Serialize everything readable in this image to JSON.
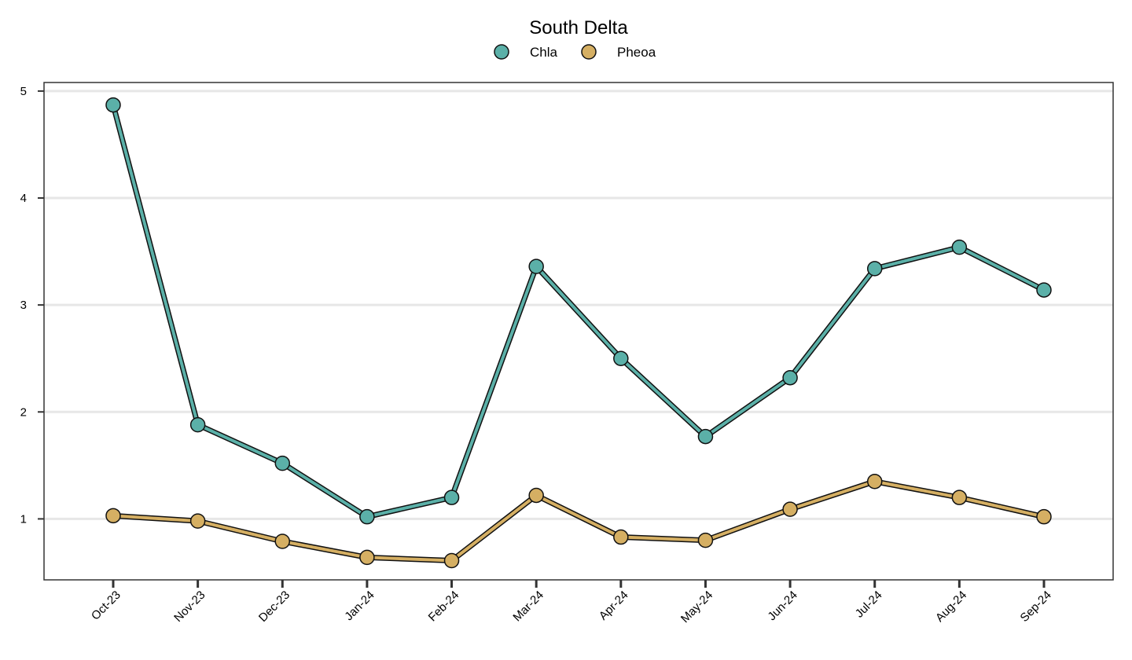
{
  "chart_data": {
    "type": "line",
    "title": "South Delta",
    "xlabel": "",
    "ylabel": "",
    "categories": [
      "Oct-23",
      "Nov-23",
      "Dec-23",
      "Jan-24",
      "Feb-24",
      "Mar-24",
      "Apr-24",
      "May-24",
      "Jun-24",
      "Jul-24",
      "Aug-24",
      "Sep-24"
    ],
    "series": [
      {
        "name": "Chla",
        "color": "#5BB0A8",
        "values": [
          4.87,
          1.88,
          1.52,
          1.02,
          1.2,
          3.36,
          2.5,
          1.77,
          2.32,
          3.34,
          3.54,
          3.14
        ]
      },
      {
        "name": "Pheoa",
        "color": "#D5AF63",
        "values": [
          1.03,
          0.98,
          0.79,
          0.64,
          0.61,
          1.22,
          0.83,
          0.8,
          1.09,
          1.35,
          1.2,
          1.02
        ]
      }
    ],
    "ylim": [
      0.43,
      5.08
    ],
    "yticks": [
      1,
      2,
      3,
      4,
      5
    ],
    "grid": true,
    "grid_axis": "y",
    "legend_position": "top"
  }
}
